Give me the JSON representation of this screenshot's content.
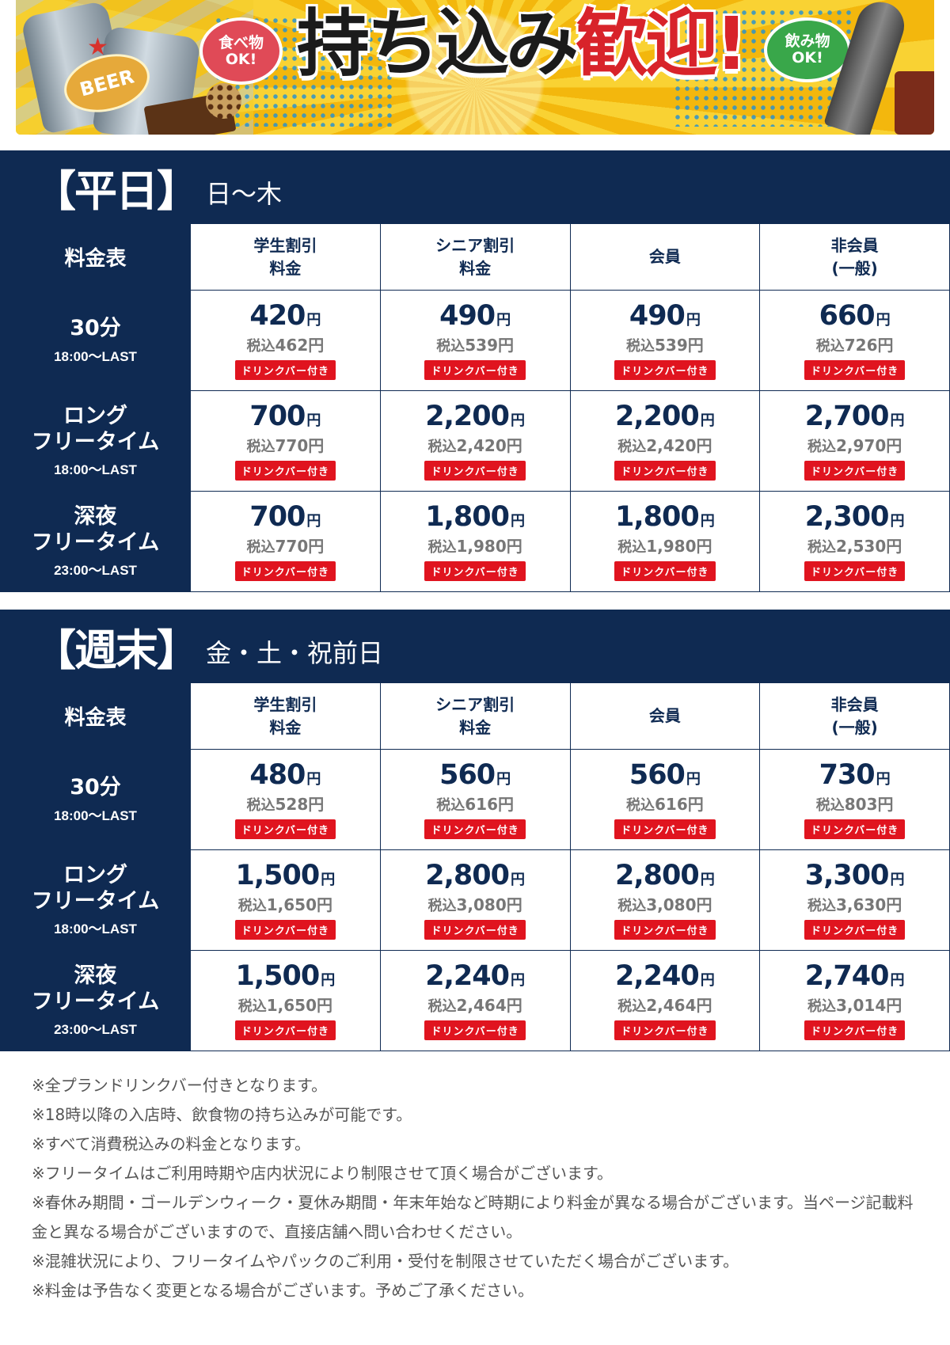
{
  "banner": {
    "title_main": "持ち込み",
    "title_accent": "歓迎!",
    "food_bubble": "食べ物\nOK!",
    "drink_bubble": "飲み物\nOK!",
    "beer_label": "BEER"
  },
  "drink_badge": "ドリンクバー付き",
  "yen": "円",
  "tax_label": "税込",
  "columns": [
    "学生割引\n料金",
    "シニア割引\n料金",
    "会員",
    "非会員\n(一般)"
  ],
  "corner_label": "料金表",
  "weekday": {
    "title": "【平日】",
    "days": "日〜木",
    "rows": [
      {
        "name": "30分",
        "time": "18:00〜LAST",
        "prices": [
          {
            "p": "420",
            "t": "462"
          },
          {
            "p": "490",
            "t": "539"
          },
          {
            "p": "490",
            "t": "539"
          },
          {
            "p": "660",
            "t": "726"
          }
        ]
      },
      {
        "name": "ロング\nフリータイム",
        "time": "18:00〜LAST",
        "prices": [
          {
            "p": "700",
            "t": "770"
          },
          {
            "p": "2,200",
            "t": "2,420"
          },
          {
            "p": "2,200",
            "t": "2,420"
          },
          {
            "p": "2,700",
            "t": "2,970"
          }
        ]
      },
      {
        "name": "深夜\nフリータイム",
        "time": "23:00〜LAST",
        "prices": [
          {
            "p": "700",
            "t": "770"
          },
          {
            "p": "1,800",
            "t": "1,980"
          },
          {
            "p": "1,800",
            "t": "1,980"
          },
          {
            "p": "2,300",
            "t": "2,530"
          }
        ]
      }
    ]
  },
  "weekend": {
    "title": "【週末】",
    "days": "金・土・祝前日",
    "rows": [
      {
        "name": "30分",
        "time": "18:00〜LAST",
        "prices": [
          {
            "p": "480",
            "t": "528"
          },
          {
            "p": "560",
            "t": "616"
          },
          {
            "p": "560",
            "t": "616"
          },
          {
            "p": "730",
            "t": "803"
          }
        ]
      },
      {
        "name": "ロング\nフリータイム",
        "time": "18:00〜LAST",
        "prices": [
          {
            "p": "1,500",
            "t": "1,650"
          },
          {
            "p": "2,800",
            "t": "3,080"
          },
          {
            "p": "2,800",
            "t": "3,080"
          },
          {
            "p": "3,300",
            "t": "3,630"
          }
        ]
      },
      {
        "name": "深夜\nフリータイム",
        "time": "23:00〜LAST",
        "prices": [
          {
            "p": "1,500",
            "t": "1,650"
          },
          {
            "p": "2,240",
            "t": "2,464"
          },
          {
            "p": "2,240",
            "t": "2,464"
          },
          {
            "p": "2,740",
            "t": "3,014"
          }
        ]
      }
    ]
  },
  "notes": [
    "※全プランドリンクバー付きとなります。",
    "※18時以降の入店時、飲食物の持ち込みが可能です。",
    "※すべて消費税込みの料金となります。",
    "※フリータイムはご利用時期や店内状況により制限させて頂く場合がございます。",
    "※春休み期間・ゴールデンウィーク・夏休み期間・年末年始など時期により料金が異なる場合がございます。当ページ記載料金と異なる場合がございますので、直接店舗へ問い合わせください。",
    "※混雑状況により、フリータイムやパックのご利用・受付を制限させていただく場合がございます。",
    "※料金は予告なく変更となる場合がございます。予めご了承ください。"
  ]
}
